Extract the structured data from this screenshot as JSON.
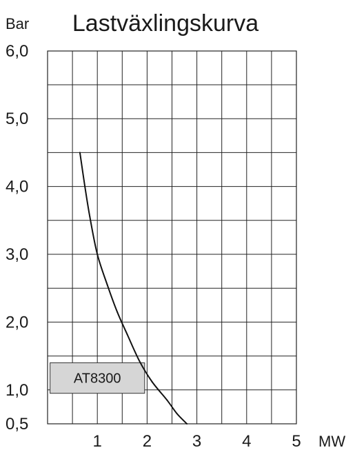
{
  "chart_data": {
    "type": "line",
    "title": "Lastväxlingskurva",
    "xlabel": "MW",
    "ylabel": "Bar",
    "xlim": [
      0,
      5.2
    ],
    "ylim": [
      0.5,
      6.0
    ],
    "x_ticks": [
      1,
      2,
      3,
      4,
      5
    ],
    "x_tick_labels": [
      "1",
      "2",
      "3",
      "4",
      "5"
    ],
    "y_ticks": [
      0.5,
      1.0,
      2.0,
      3.0,
      4.0,
      5.0,
      6.0
    ],
    "y_tick_labels": [
      "0,5",
      "1,0",
      "2,0",
      "3,0",
      "4,0",
      "5,0",
      "6,0"
    ],
    "grid": true,
    "series": [
      {
        "name": "",
        "x": [
          0.65,
          0.75,
          0.85,
          1.0,
          1.2,
          1.4,
          1.6,
          1.85,
          2.1,
          2.4,
          2.6,
          2.8
        ],
        "y": [
          4.5,
          4.0,
          3.55,
          3.0,
          2.55,
          2.15,
          1.82,
          1.42,
          1.12,
          0.85,
          0.65,
          0.5
        ]
      }
    ],
    "annotations": [
      {
        "text": "AT8300",
        "x_range": [
          0.05,
          1.95
        ],
        "y_range": [
          0.95,
          1.4
        ]
      }
    ]
  }
}
